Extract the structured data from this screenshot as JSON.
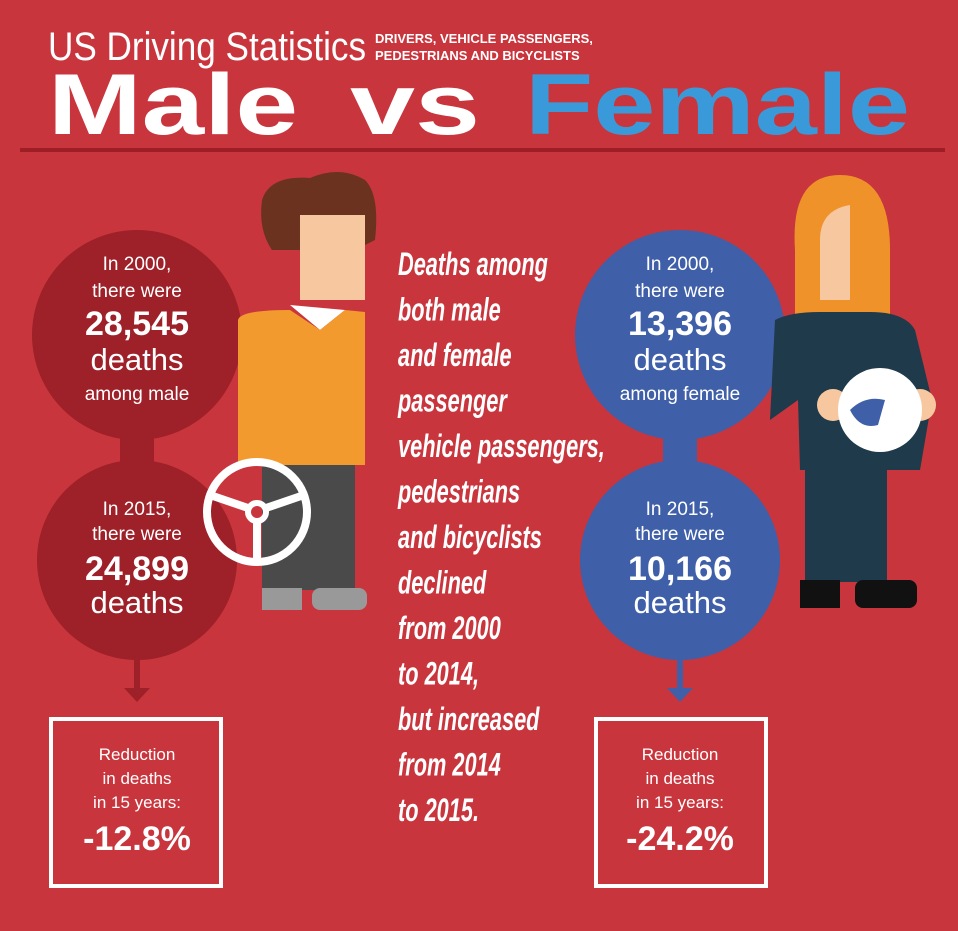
{
  "header": {
    "title": "US Driving Statistics",
    "subtitle": [
      "DRIVERS, VEHICLE PASSENGERS,",
      "PEDESTRIANS  AND BICYCLISTS"
    ],
    "headline": [
      "Male",
      "vs",
      "Female"
    ]
  },
  "male": {
    "year2000": [
      "In 2000,",
      "there were",
      "28,545",
      "deaths",
      "among male"
    ],
    "year2015": [
      "In 2015,",
      "there were",
      "24,899",
      "deaths"
    ],
    "reduction": [
      "Reduction",
      "in deaths",
      "in 15 years:",
      "-12.8%"
    ]
  },
  "female": {
    "year2000": [
      "In 2000,",
      "there were",
      "13,396",
      "deaths",
      "among female"
    ],
    "year2015": [
      "In 2015,",
      "there were",
      "10,166",
      "deaths"
    ],
    "reduction": [
      "Reduction",
      "in deaths",
      "in 15 years:",
      "-24.2%"
    ]
  },
  "center_text": [
    "Deaths among",
    "both male",
    "and female",
    "passenger",
    "vehicle passengers,",
    "pedestrians",
    "and bicyclists",
    "declined",
    "from 2000",
    "to 2014,",
    "but increased",
    "from 2014",
    "to 2015."
  ]
}
